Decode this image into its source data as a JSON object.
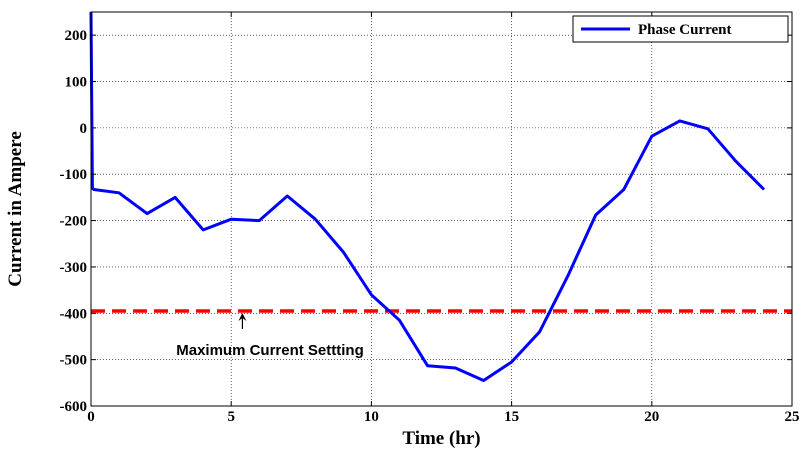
{
  "chart_data": {
    "type": "line",
    "title": "",
    "xlabel": "Time (hr)",
    "ylabel": "Current in Ampere",
    "xlim": [
      0,
      25
    ],
    "ylim": [
      -600,
      250
    ],
    "xticks": [
      0,
      5,
      10,
      15,
      20,
      25
    ],
    "yticks": [
      200,
      100,
      0,
      -100,
      -200,
      -300,
      -400,
      -500,
      -600
    ],
    "xtick_labels": [
      "0",
      "5",
      "10",
      "15",
      "20",
      "25"
    ],
    "ytick_labels": [
      "200",
      "100",
      "0",
      "-100",
      "-200",
      "-300",
      "-400",
      "-500",
      "-600"
    ],
    "grid": true,
    "legend_position": "top-right",
    "series": [
      {
        "name": "Phase Current",
        "color": "#0000ff",
        "style": "solid",
        "x": [
          0,
          0.05,
          0.1,
          1,
          2,
          3,
          4,
          5,
          6,
          7,
          8,
          9,
          10,
          11,
          12,
          13,
          14,
          15,
          16,
          17,
          18,
          19,
          20,
          21,
          22,
          23,
          24
        ],
        "y": [
          250,
          -130,
          -133,
          -140,
          -185,
          -150,
          -220,
          -197,
          -200,
          -147,
          -197,
          -268,
          -360,
          -415,
          -513,
          -518,
          -545,
          -505,
          -440,
          -320,
          -188,
          -133,
          -18,
          15,
          -2,
          -72,
          -133
        ]
      }
    ],
    "reference_lines": [
      {
        "orientation": "horizontal",
        "y": -395,
        "color": "#ff0000",
        "style": "dashed"
      }
    ],
    "annotations": [
      {
        "text": "Maximum Current Settting",
        "arrow_target": {
          "x": 5.4,
          "y": -395
        }
      }
    ]
  }
}
